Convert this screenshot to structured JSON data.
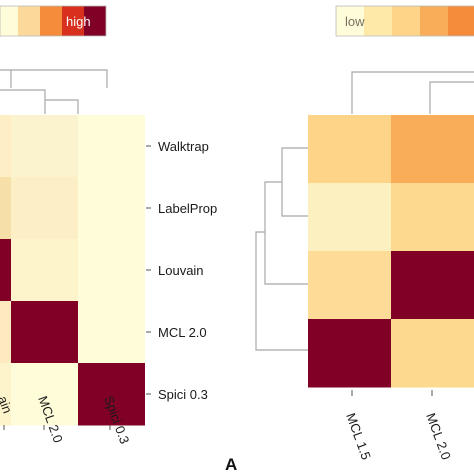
{
  "legend_left": {
    "high_label": "high"
  },
  "legend_right": {
    "low_label": "low"
  },
  "panel_label": "A",
  "chart_data": [
    {
      "type": "heatmap",
      "row_labels": [
        "Walktrap",
        "LabelProp",
        "Louvain",
        "MCL 2.0",
        "Spici 0.3"
      ],
      "col_labels": [
        "ain",
        "MCL 2.0",
        "Spici 0.3"
      ],
      "colors": [
        "#fdeec5",
        "#fbf3ce",
        "#fffcd9",
        "#f7dfa8",
        "#fcefc6",
        "#fffcd9",
        "#800026",
        "#fef4cc",
        "#fffcd9",
        "#fdeac0",
        "#800026",
        "#fffcd9",
        "#fef4cc",
        "#fffcd9",
        "#800026"
      ],
      "color_scale": [
        "#fffcd9",
        "#fdd89b",
        "#f58c3c",
        "#d7301f",
        "#800026"
      ]
    },
    {
      "type": "heatmap",
      "col_labels": [
        "MCL 1.5",
        "MCL 2.0"
      ],
      "colors": [
        "#fdd488",
        "#f9ad58",
        "#fdf0c0",
        "#fdd98f",
        "#fedc98",
        "#800026",
        "#800026",
        "#fdd98f"
      ],
      "color_scale": [
        "#fffcd9",
        "#fee9a9",
        "#fdd488",
        "#f9ad58",
        "#f58c3c"
      ]
    }
  ]
}
